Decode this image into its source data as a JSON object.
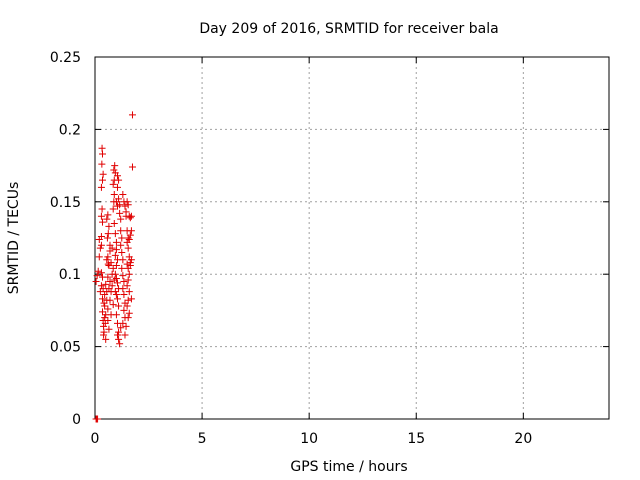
{
  "chart_data": {
    "type": "scatter",
    "title": "Day 209 of 2016, SRMTID for receiver bala",
    "xlabel": "GPS time / hours",
    "ylabel": "SRMTID / TECUs",
    "xlim": [
      0,
      24
    ],
    "ylim": [
      0,
      0.25
    ],
    "x_ticks": [
      0,
      5,
      10,
      15,
      20
    ],
    "x_tick_labels": [
      "0",
      "5",
      "10",
      "15",
      "20"
    ],
    "y_ticks": [
      0,
      0.05,
      0.1,
      0.15,
      0.2,
      0.25
    ],
    "y_tick_labels": [
      "0",
      "0.05",
      "0.1",
      "0.15",
      "0.2",
      "0.25"
    ],
    "grid": true,
    "grid_style": "dotted",
    "marker": "+",
    "point_color": "#e00000",
    "series": [
      {
        "points": [
          [
            0.05,
            0.0
          ],
          [
            0.08,
            0.0
          ],
          [
            0.12,
            0.0
          ],
          [
            0.05,
            0.095
          ],
          [
            0.1,
            0.099
          ],
          [
            0.15,
            0.102
          ],
          [
            0.2,
            0.112
          ],
          [
            0.2,
            0.124
          ],
          [
            0.25,
            0.118
          ],
          [
            0.3,
            0.12
          ],
          [
            0.3,
            0.126
          ],
          [
            0.25,
            0.088
          ],
          [
            0.3,
            0.092
          ],
          [
            0.35,
            0.083
          ],
          [
            0.35,
            0.098
          ],
          [
            0.3,
            0.101
          ],
          [
            0.3,
            0.14
          ],
          [
            0.33,
            0.145
          ],
          [
            0.35,
            0.136
          ],
          [
            0.3,
            0.16
          ],
          [
            0.35,
            0.165
          ],
          [
            0.32,
            0.176
          ],
          [
            0.35,
            0.183
          ],
          [
            0.33,
            0.187
          ],
          [
            0.38,
            0.169
          ],
          [
            0.35,
            0.074
          ],
          [
            0.38,
            0.068
          ],
          [
            0.4,
            0.064
          ],
          [
            0.4,
            0.058
          ],
          [
            0.42,
            0.06
          ],
          [
            0.45,
            0.07
          ],
          [
            0.45,
            0.078
          ],
          [
            0.48,
            0.066
          ],
          [
            0.5,
            0.072
          ],
          [
            0.5,
            0.055
          ],
          [
            0.42,
            0.08
          ],
          [
            0.38,
            0.09
          ],
          [
            0.45,
            0.086
          ],
          [
            0.5,
            0.093
          ],
          [
            0.55,
            0.082
          ],
          [
            0.55,
            0.088
          ],
          [
            0.6,
            0.076
          ],
          [
            0.6,
            0.098
          ],
          [
            0.62,
            0.107
          ],
          [
            0.65,
            0.106
          ],
          [
            0.55,
            0.11
          ],
          [
            0.6,
            0.112
          ],
          [
            0.58,
            0.125
          ],
          [
            0.62,
            0.128
          ],
          [
            0.55,
            0.138
          ],
          [
            0.6,
            0.141
          ],
          [
            0.65,
            0.133
          ],
          [
            0.7,
            0.116
          ],
          [
            0.7,
            0.12
          ],
          [
            0.75,
            0.088
          ],
          [
            0.8,
            0.092
          ],
          [
            0.8,
            0.1
          ],
          [
            0.85,
            0.079
          ],
          [
            0.75,
            0.072
          ],
          [
            0.85,
            0.145
          ],
          [
            0.88,
            0.15
          ],
          [
            0.9,
            0.155
          ],
          [
            0.85,
            0.162
          ],
          [
            0.9,
            0.165
          ],
          [
            0.88,
            0.172
          ],
          [
            0.92,
            0.175
          ],
          [
            0.95,
            0.17
          ],
          [
            0.9,
            0.135
          ],
          [
            0.95,
            0.128
          ],
          [
            1.0,
            0.122
          ],
          [
            1.0,
            0.117
          ],
          [
            0.95,
            0.113
          ],
          [
            1.05,
            0.11
          ],
          [
            1.0,
            0.106
          ],
          [
            0.95,
            0.1
          ],
          [
            1.0,
            0.097
          ],
          [
            1.05,
            0.094
          ],
          [
            1.1,
            0.09
          ],
          [
            1.0,
            0.086
          ],
          [
            1.05,
            0.083
          ],
          [
            1.1,
            0.078
          ],
          [
            1.0,
            0.072
          ],
          [
            1.05,
            0.066
          ],
          [
            1.1,
            0.06
          ],
          [
            1.1,
            0.055
          ],
          [
            1.15,
            0.052
          ],
          [
            1.05,
            0.058
          ],
          [
            1.2,
            0.063
          ],
          [
            1.0,
            0.15
          ],
          [
            1.05,
            0.147
          ],
          [
            1.1,
            0.152
          ],
          [
            1.15,
            0.148
          ],
          [
            1.05,
            0.16
          ],
          [
            1.1,
            0.165
          ],
          [
            1.05,
            0.168
          ],
          [
            1.15,
            0.142
          ],
          [
            1.2,
            0.138
          ],
          [
            1.2,
            0.13
          ],
          [
            1.25,
            0.125
          ],
          [
            1.2,
            0.12
          ],
          [
            1.25,
            0.115
          ],
          [
            1.3,
            0.11
          ],
          [
            1.25,
            0.104
          ],
          [
            1.3,
            0.099
          ],
          [
            1.35,
            0.095
          ],
          [
            1.3,
            0.09
          ],
          [
            1.35,
            0.086
          ],
          [
            1.4,
            0.08
          ],
          [
            1.35,
            0.075
          ],
          [
            1.4,
            0.07
          ],
          [
            1.3,
            0.066
          ],
          [
            1.45,
            0.064
          ],
          [
            1.4,
            0.058
          ],
          [
            1.3,
            0.155
          ],
          [
            1.35,
            0.15
          ],
          [
            1.4,
            0.147
          ],
          [
            1.45,
            0.143
          ],
          [
            1.45,
            0.14
          ],
          [
            1.5,
            0.15
          ],
          [
            1.55,
            0.148
          ],
          [
            1.5,
            0.13
          ],
          [
            1.55,
            0.125
          ],
          [
            1.5,
            0.122
          ],
          [
            1.55,
            0.118
          ],
          [
            1.6,
            0.112
          ],
          [
            1.5,
            0.107
          ],
          [
            1.55,
            0.104
          ],
          [
            1.6,
            0.1
          ],
          [
            1.55,
            0.096
          ],
          [
            1.5,
            0.092
          ],
          [
            1.6,
            0.088
          ],
          [
            1.55,
            0.082
          ],
          [
            1.5,
            0.078
          ],
          [
            1.6,
            0.073
          ],
          [
            1.55,
            0.07
          ],
          [
            1.6,
            0.14
          ],
          [
            1.65,
            0.139
          ],
          [
            1.65,
            0.127
          ],
          [
            1.7,
            0.13
          ],
          [
            1.7,
            0.11
          ],
          [
            1.65,
            0.106
          ],
          [
            1.7,
            0.083
          ],
          [
            1.75,
            0.174
          ],
          [
            1.75,
            0.21
          ],
          [
            1.7,
            0.14
          ],
          [
            1.6,
            0.124
          ],
          [
            1.65,
            0.108
          ],
          [
            0.7,
            0.095
          ],
          [
            0.75,
            0.108
          ],
          [
            0.8,
            0.118
          ],
          [
            0.85,
            0.104
          ],
          [
            0.9,
            0.096
          ],
          [
            0.95,
            0.088
          ],
          [
            0.7,
            0.082
          ],
          [
            0.65,
            0.09
          ],
          [
            0.6,
            0.068
          ],
          [
            0.65,
            0.062
          ]
        ]
      }
    ]
  }
}
